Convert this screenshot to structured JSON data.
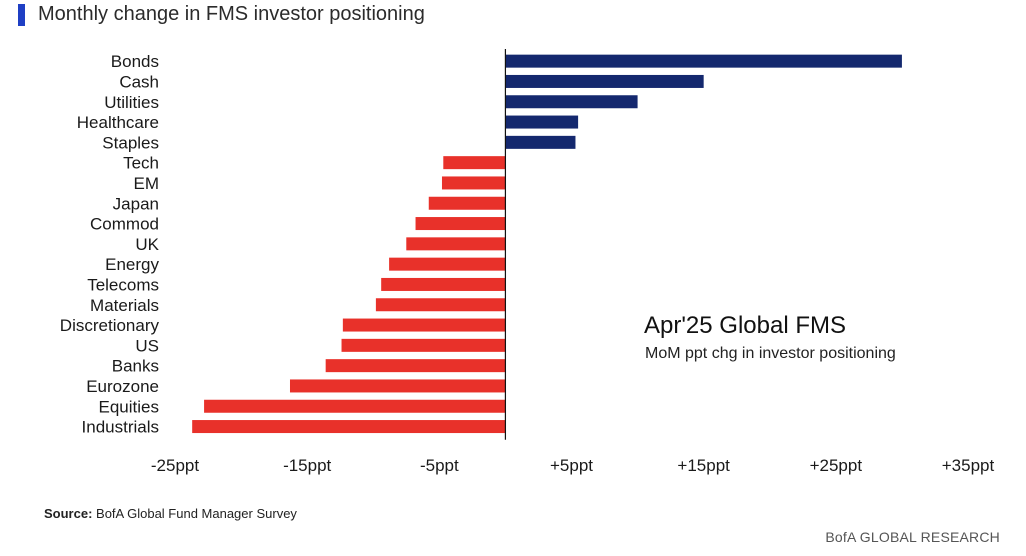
{
  "header": {
    "title": "Monthly change in FMS investor positioning"
  },
  "annotation": {
    "title": "Apr'25 Global FMS",
    "subtitle": "MoM ppt chg in investor positioning"
  },
  "footer": {
    "source_label": "Source:",
    "source_text": "BofA Global Fund Manager Survey",
    "brand": "BofA GLOBAL RESEARCH"
  },
  "colors": {
    "positive": "#14286e",
    "negative": "#e8312a",
    "accent": "#1f3fc4"
  },
  "chart_data": {
    "type": "bar",
    "orientation": "horizontal",
    "categories": [
      "Bonds",
      "Cash",
      "Utilities",
      "Healthcare",
      "Staples",
      "Tech",
      "EM",
      "Japan",
      "Commod",
      "UK",
      "Energy",
      "Telecoms",
      "Materials",
      "Discretionary",
      "US",
      "Banks",
      "Eurozone",
      "Equities",
      "Industrials"
    ],
    "values": [
      30,
      15,
      10,
      5.5,
      5.3,
      -4.7,
      -4.8,
      -5.8,
      -6.8,
      -7.5,
      -8.8,
      -9.4,
      -9.8,
      -12.3,
      -12.4,
      -13.6,
      -16.3,
      -22.8,
      -23.7
    ],
    "xticks": [
      -25,
      -15,
      -5,
      5,
      15,
      25,
      35
    ],
    "xtick_labels": [
      "-25ppt",
      "-15ppt",
      "-5ppt",
      "+5ppt",
      "+15ppt",
      "+25ppt",
      "+35ppt"
    ],
    "xlim": [
      -25,
      35
    ],
    "grid": false,
    "legend": "none"
  }
}
